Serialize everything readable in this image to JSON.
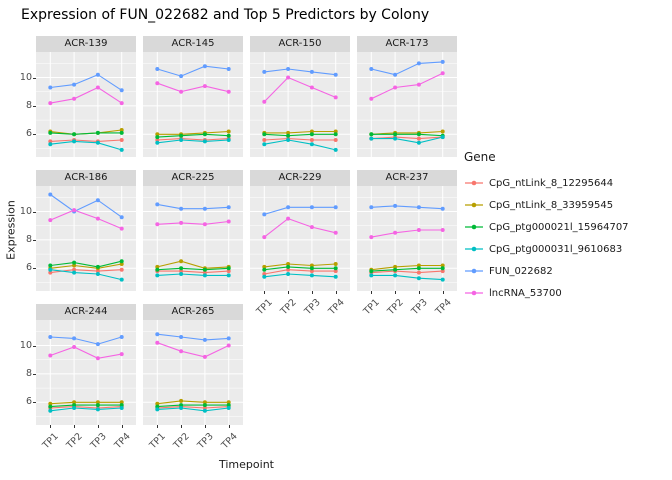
{
  "title": "Expression of FUN_022682 and Top 5 Predictors by Colony",
  "x_axis_title": "Timepoint",
  "y_axis_title": "Expression",
  "legend": {
    "title": "Gene",
    "entries": [
      {
        "label": "CpG_ntLink_8_12295644",
        "color": "#F8766D"
      },
      {
        "label": "CpG_ntLink_8_33959545",
        "color": "#B79F00"
      },
      {
        "label": "CpG_ptg000021l_15964707",
        "color": "#00BA38"
      },
      {
        "label": "CpG_ptg000031l_9610683",
        "color": "#00BFC4"
      },
      {
        "label": "FUN_022682",
        "color": "#619CFF"
      },
      {
        "label": "lncRNA_53700",
        "color": "#F564E3"
      }
    ]
  },
  "chart_data": {
    "type": "line",
    "title": "Expression of FUN_022682 and Top 5 Predictors by Colony",
    "xlabel": "Timepoint",
    "ylabel": "Expression",
    "facet_by": "Colony",
    "facet_columns": 4,
    "legend_position": "right",
    "x": [
      "TP1",
      "TP2",
      "TP3",
      "TP4"
    ],
    "y_ticks": [
      6,
      8,
      10
    ],
    "y_minor": [
      5,
      7,
      9,
      11
    ],
    "ylim": [
      4.4,
      11.8
    ],
    "series": [
      {
        "name": "CpG_ntLink_8_12295644",
        "color": "#F8766D"
      },
      {
        "name": "CpG_ntLink_8_33959545",
        "color": "#B79F00"
      },
      {
        "name": "CpG_ptg000021l_15964707",
        "color": "#00BA38"
      },
      {
        "name": "CpG_ptg000031l_9610683",
        "color": "#00BFC4"
      },
      {
        "name": "FUN_022682",
        "color": "#619CFF"
      },
      {
        "name": "lncRNA_53700",
        "color": "#F564E3"
      }
    ],
    "facets": [
      {
        "colony": "ACR-139",
        "values": [
          [
            5.5,
            5.6,
            5.5,
            5.6
          ],
          [
            6.2,
            6.0,
            6.1,
            6.3
          ],
          [
            6.1,
            6.0,
            6.1,
            6.1
          ],
          [
            5.3,
            5.5,
            5.4,
            4.9
          ],
          [
            9.3,
            9.5,
            10.2,
            9.1
          ],
          [
            8.2,
            8.5,
            9.3,
            8.2
          ]
        ]
      },
      {
        "colony": "ACR-145",
        "values": [
          [
            5.6,
            5.7,
            5.6,
            5.7
          ],
          [
            6.0,
            6.0,
            6.1,
            6.2
          ],
          [
            5.8,
            5.9,
            6.0,
            5.9
          ],
          [
            5.4,
            5.6,
            5.5,
            5.6
          ],
          [
            10.6,
            10.1,
            10.8,
            10.6
          ],
          [
            9.6,
            9.0,
            9.4,
            9.0
          ]
        ]
      },
      {
        "colony": "ACR-150",
        "values": [
          [
            5.6,
            5.7,
            5.6,
            5.6
          ],
          [
            6.1,
            6.1,
            6.2,
            6.2
          ],
          [
            6.0,
            5.9,
            6.0,
            6.0
          ],
          [
            5.3,
            5.6,
            5.3,
            4.9
          ],
          [
            10.4,
            10.6,
            10.4,
            10.2
          ],
          [
            8.3,
            10.0,
            9.3,
            8.6
          ]
        ]
      },
      {
        "colony": "ACR-173",
        "values": [
          [
            5.7,
            5.8,
            5.7,
            5.8
          ],
          [
            6.0,
            6.1,
            6.1,
            6.2
          ],
          [
            6.0,
            6.0,
            6.0,
            5.9
          ],
          [
            5.7,
            5.7,
            5.4,
            5.8
          ],
          [
            10.6,
            10.2,
            11.0,
            11.1
          ],
          [
            8.5,
            9.3,
            9.5,
            10.3
          ]
        ]
      },
      {
        "colony": "ACR-186",
        "values": [
          [
            5.7,
            5.9,
            5.8,
            5.9
          ],
          [
            6.0,
            6.2,
            6.0,
            6.3
          ],
          [
            6.2,
            6.4,
            6.1,
            6.5
          ],
          [
            5.9,
            5.7,
            5.6,
            5.2
          ],
          [
            11.2,
            10.0,
            10.8,
            9.6
          ],
          [
            9.4,
            10.1,
            9.5,
            8.8
          ]
        ]
      },
      {
        "colony": "ACR-225",
        "values": [
          [
            5.8,
            5.8,
            5.7,
            5.8
          ],
          [
            6.1,
            6.5,
            6.0,
            6.1
          ],
          [
            5.9,
            6.0,
            5.9,
            6.0
          ],
          [
            5.5,
            5.6,
            5.5,
            5.5
          ],
          [
            10.5,
            10.2,
            10.2,
            10.3
          ],
          [
            9.1,
            9.2,
            9.1,
            9.3
          ]
        ]
      },
      {
        "colony": "ACR-229",
        "values": [
          [
            5.6,
            5.9,
            5.8,
            5.8
          ],
          [
            6.1,
            6.3,
            6.2,
            6.3
          ],
          [
            5.9,
            6.1,
            6.0,
            6.0
          ],
          [
            5.4,
            5.6,
            5.5,
            5.4
          ],
          [
            9.8,
            10.3,
            10.3,
            10.3
          ],
          [
            8.2,
            9.5,
            8.9,
            8.5
          ]
        ]
      },
      {
        "colony": "ACR-237",
        "values": [
          [
            5.7,
            5.8,
            5.7,
            5.8
          ],
          [
            5.9,
            6.1,
            6.2,
            6.2
          ],
          [
            5.8,
            5.9,
            6.0,
            6.0
          ],
          [
            5.5,
            5.5,
            5.3,
            5.2
          ],
          [
            10.3,
            10.4,
            10.3,
            10.2
          ],
          [
            8.2,
            8.5,
            8.7,
            8.7
          ]
        ]
      },
      {
        "colony": "ACR-244",
        "values": [
          [
            5.6,
            5.7,
            5.6,
            5.7
          ],
          [
            5.9,
            6.0,
            6.0,
            6.0
          ],
          [
            5.7,
            5.8,
            5.8,
            5.8
          ],
          [
            5.4,
            5.6,
            5.5,
            5.6
          ],
          [
            10.6,
            10.5,
            10.1,
            10.6
          ],
          [
            9.3,
            9.9,
            9.1,
            9.4
          ]
        ]
      },
      {
        "colony": "ACR-265",
        "values": [
          [
            5.6,
            5.7,
            5.6,
            5.7
          ],
          [
            5.9,
            6.1,
            6.0,
            6.0
          ],
          [
            5.7,
            5.8,
            5.8,
            5.8
          ],
          [
            5.5,
            5.6,
            5.4,
            5.6
          ],
          [
            10.8,
            10.6,
            10.4,
            10.5
          ],
          [
            10.2,
            9.6,
            9.2,
            10.0
          ]
        ]
      }
    ]
  }
}
